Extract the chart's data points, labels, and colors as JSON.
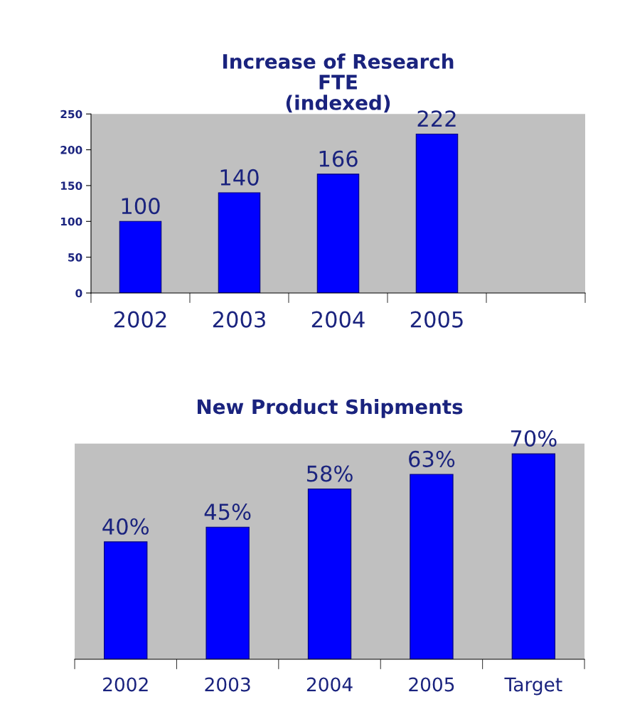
{
  "chart_data": [
    {
      "type": "bar",
      "title": "Increase of Research\nFTE\n(indexed)",
      "categories": [
        "2002",
        "2003",
        "2004",
        "2005",
        null
      ],
      "values": [
        100,
        140,
        166,
        222,
        null
      ],
      "color": "#0000ff",
      "ylim": [
        0,
        250
      ],
      "yticks": [
        0,
        50,
        100,
        150,
        200,
        250
      ],
      "data_labels": true,
      "grid": false,
      "legend": false
    },
    {
      "type": "bar",
      "title": "New Product Shipments",
      "categories": [
        "2002",
        "2003",
        "2004",
        "2005",
        "Target"
      ],
      "values": [
        40,
        45,
        58,
        63,
        70
      ],
      "value_labels": [
        "40%",
        "45%",
        "58%",
        "63%",
        "70%"
      ],
      "color": "#0000ff",
      "tick_labels": "x",
      "grid": false,
      "legend": false
    }
  ]
}
